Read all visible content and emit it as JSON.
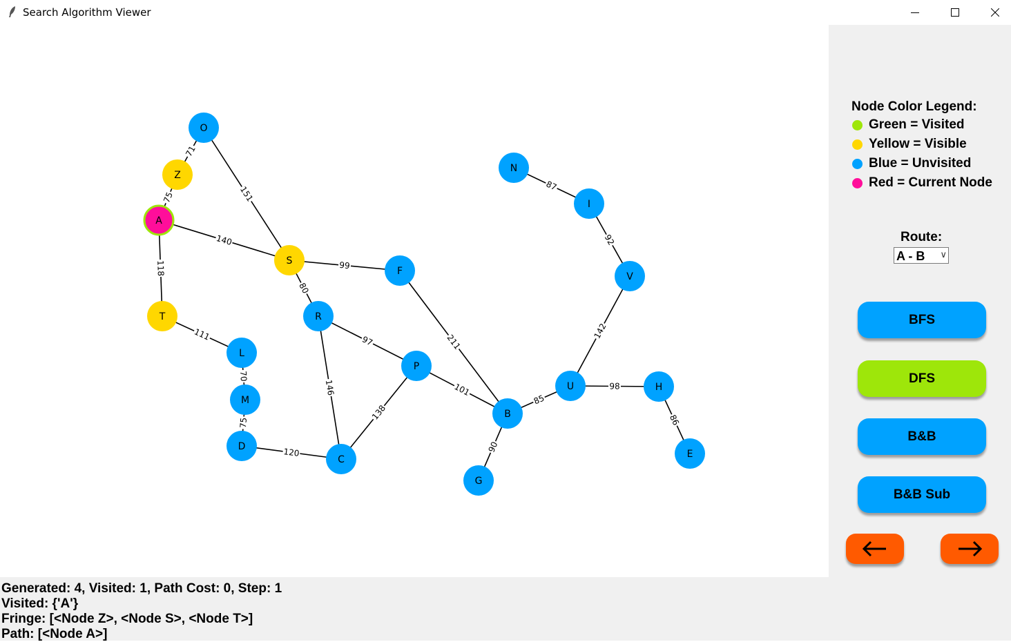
{
  "window": {
    "title": "Search Algorithm Viewer",
    "icon": "feather-icon",
    "controls": [
      "minimize-icon",
      "maximize-icon",
      "close-icon"
    ]
  },
  "colors": {
    "visited": "#9ee60a",
    "visible": "#ffd700",
    "unvisited": "#00a2ff",
    "current": "#ff0e9a",
    "button_blue": "#00a2ff",
    "button_green": "#9ee60a",
    "nav_orange": "#ff5a00",
    "panel_bg": "#f0f0f0"
  },
  "graph": {
    "nodes": [
      {
        "id": "O",
        "state": "unvisited"
      },
      {
        "id": "Z",
        "state": "visible"
      },
      {
        "id": "A",
        "state": "current"
      },
      {
        "id": "S",
        "state": "visible"
      },
      {
        "id": "T",
        "state": "visible"
      },
      {
        "id": "L",
        "state": "unvisited"
      },
      {
        "id": "M",
        "state": "unvisited"
      },
      {
        "id": "D",
        "state": "unvisited"
      },
      {
        "id": "R",
        "state": "unvisited"
      },
      {
        "id": "F",
        "state": "unvisited"
      },
      {
        "id": "P",
        "state": "unvisited"
      },
      {
        "id": "C",
        "state": "unvisited"
      },
      {
        "id": "B",
        "state": "unvisited"
      },
      {
        "id": "G",
        "state": "unvisited"
      },
      {
        "id": "U",
        "state": "unvisited"
      },
      {
        "id": "H",
        "state": "unvisited"
      },
      {
        "id": "E",
        "state": "unvisited"
      },
      {
        "id": "V",
        "state": "unvisited"
      },
      {
        "id": "I",
        "state": "unvisited"
      },
      {
        "id": "N",
        "state": "unvisited"
      }
    ],
    "edges": [
      {
        "from": "O",
        "to": "Z",
        "weight": "71"
      },
      {
        "from": "Z",
        "to": "A",
        "weight": "75"
      },
      {
        "from": "O",
        "to": "S",
        "weight": "151"
      },
      {
        "from": "A",
        "to": "S",
        "weight": "140"
      },
      {
        "from": "A",
        "to": "T",
        "weight": "118"
      },
      {
        "from": "T",
        "to": "L",
        "weight": "111"
      },
      {
        "from": "L",
        "to": "M",
        "weight": "70"
      },
      {
        "from": "M",
        "to": "D",
        "weight": "75"
      },
      {
        "from": "D",
        "to": "C",
        "weight": "120"
      },
      {
        "from": "S",
        "to": "F",
        "weight": "99"
      },
      {
        "from": "S",
        "to": "R",
        "weight": "80"
      },
      {
        "from": "R",
        "to": "P",
        "weight": "97"
      },
      {
        "from": "R",
        "to": "C",
        "weight": "146"
      },
      {
        "from": "P",
        "to": "C",
        "weight": "138"
      },
      {
        "from": "P",
        "to": "B",
        "weight": "101"
      },
      {
        "from": "F",
        "to": "B",
        "weight": "211"
      },
      {
        "from": "B",
        "to": "G",
        "weight": "90"
      },
      {
        "from": "B",
        "to": "U",
        "weight": "85"
      },
      {
        "from": "U",
        "to": "H",
        "weight": "98"
      },
      {
        "from": "H",
        "to": "E",
        "weight": "86"
      },
      {
        "from": "U",
        "to": "V",
        "weight": "142"
      },
      {
        "from": "V",
        "to": "I",
        "weight": "92"
      },
      {
        "from": "I",
        "to": "N",
        "weight": "87"
      }
    ]
  },
  "legend": {
    "title": "Node Color Legend:",
    "items": [
      {
        "label": "Green = Visited",
        "color": "#9ee60a"
      },
      {
        "label": "Yellow = Visible",
        "color": "#ffd700"
      },
      {
        "label": "Blue = Unvisited",
        "color": "#00a2ff"
      },
      {
        "label": "Red = Current Node",
        "color": "#ff0e9a"
      }
    ]
  },
  "route": {
    "label": "Route:",
    "selected": "A - B"
  },
  "buttons": {
    "bfs": "BFS",
    "dfs": "DFS",
    "bb": "B&B",
    "bb_sub": "B&B Sub"
  },
  "nav": {
    "prev_icon": "arrow-left-icon",
    "next_icon": "arrow-right-icon"
  },
  "status": {
    "line1": "Generated: 4, Visited: 1, Path Cost: 0, Step: 1",
    "line2": "Visited: {'A'}",
    "line3": "Fringe: [<Node Z>, <Node S>, <Node T>]",
    "line4": "Path: [<Node A>]"
  }
}
